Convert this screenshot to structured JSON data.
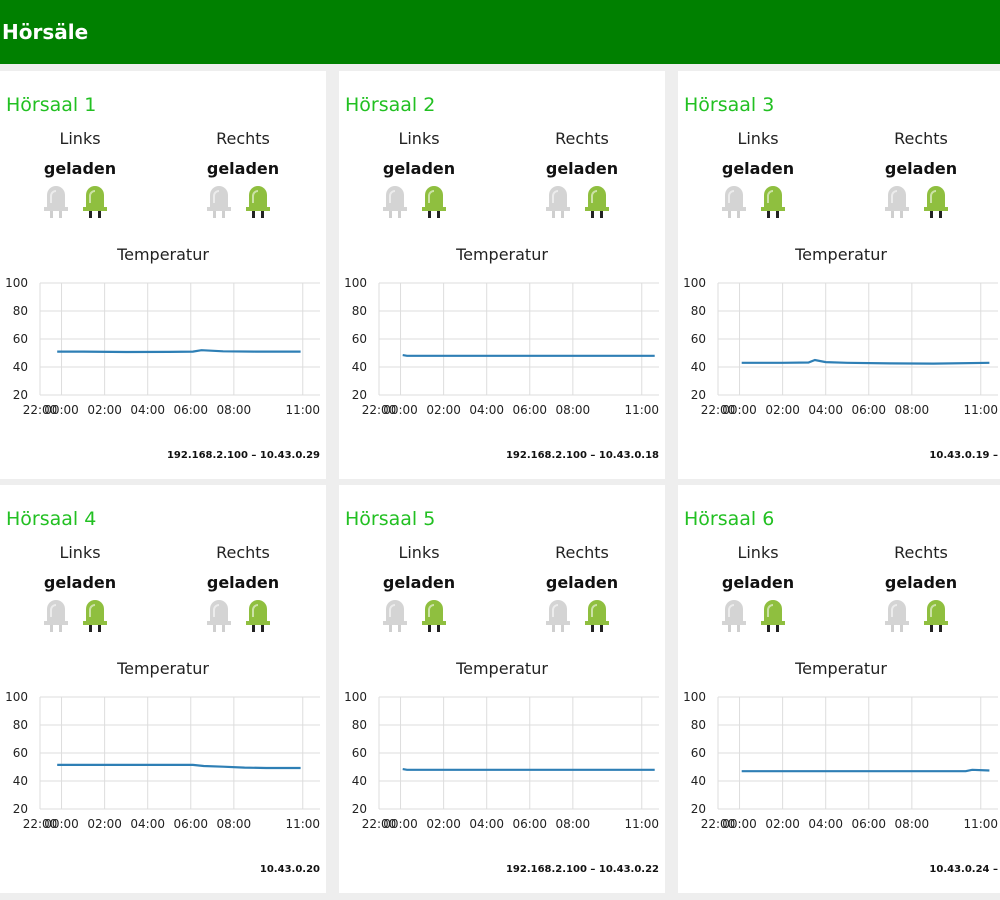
{
  "header": {
    "title": "Hörsäle",
    "background": "#008000"
  },
  "colors": {
    "title_green": "#22c022",
    "led_on": "#8fbf3f",
    "led_off": "#d4d4d4",
    "line": "#2e7fb5"
  },
  "cards": [
    {
      "title": "Hörsaal 1",
      "left": {
        "label": "Links",
        "status": "geladen",
        "led_states": [
          "off-icon",
          "on-icon"
        ]
      },
      "right": {
        "label": "Rechts",
        "status": "geladen",
        "led_states": [
          "off-icon",
          "on-icon"
        ]
      },
      "temperature_title": "Temperatur",
      "footer": "192.168.2.100 – 10.43.0.29",
      "chart_data": {
        "type": "line",
        "x_ticks": [
          "22:00",
          "00:00",
          "02:00",
          "04:00",
          "06:00",
          "08:00",
          "11:00"
        ],
        "y_ticks": [
          "100",
          "80",
          "60",
          "40",
          "20"
        ],
        "ylim": [
          20,
          100
        ],
        "xlim": [
          0,
          13
        ],
        "grid": true,
        "series": [
          {
            "x": [
              0.8,
              2,
              4,
              6,
              7.1,
              7.5,
              8.5,
              10,
              12.1
            ],
            "values": [
              51,
              51,
              50.7,
              50.8,
              51,
              52,
              51.2,
              51,
              51
            ]
          }
        ]
      }
    },
    {
      "title": "Hörsaal 2",
      "left": {
        "label": "Links",
        "status": "geladen",
        "led_states": [
          "off-icon",
          "on-icon"
        ]
      },
      "right": {
        "label": "Rechts",
        "status": "geladen",
        "led_states": [
          "off-icon",
          "on-icon"
        ]
      },
      "temperature_title": "Temperatur",
      "footer": "192.168.2.100 – 10.43.0.18",
      "chart_data": {
        "type": "line",
        "x_ticks": [
          "22:00",
          "00:00",
          "02:00",
          "04:00",
          "06:00",
          "08:00",
          "11:00"
        ],
        "y_ticks": [
          "100",
          "80",
          "60",
          "40",
          "20"
        ],
        "ylim": [
          20,
          100
        ],
        "xlim": [
          0,
          13
        ],
        "grid": true,
        "series": [
          {
            "x": [
              1.1,
              1.3,
              4,
              8,
              12.8
            ],
            "values": [
              48.5,
              48,
              48,
              48,
              48
            ]
          }
        ]
      }
    },
    {
      "title": "Hörsaal 3",
      "left": {
        "label": "Links",
        "status": "geladen",
        "led_states": [
          "off-icon",
          "on-icon"
        ]
      },
      "right": {
        "label": "Rechts",
        "status": "geladen",
        "led_states": [
          "off-icon",
          "on-icon"
        ]
      },
      "temperature_title": "Temperatur",
      "footer": "10.43.0.19 –",
      "chart_data": {
        "type": "line",
        "x_ticks": [
          "22:00",
          "00:00",
          "02:00",
          "04:00",
          "06:00",
          "08:00",
          "11:00"
        ],
        "y_ticks": [
          "100",
          "80",
          "60",
          "40",
          "20"
        ],
        "ylim": [
          20,
          100
        ],
        "xlim": [
          0,
          13
        ],
        "grid": true,
        "series": [
          {
            "x": [
              1.1,
              3,
              4.2,
              4.5,
              5,
              6,
              8,
              10,
              12.6
            ],
            "values": [
              43,
              43,
              43.2,
              45,
              43.5,
              43,
              42.6,
              42.4,
              43
            ]
          }
        ]
      }
    },
    {
      "title": "Hörsaal 4",
      "left": {
        "label": "Links",
        "status": "geladen",
        "led_states": [
          "off-icon",
          "on-icon"
        ]
      },
      "right": {
        "label": "Rechts",
        "status": "geladen",
        "led_states": [
          "off-icon",
          "on-icon"
        ]
      },
      "temperature_title": "Temperatur",
      "footer": "10.43.0.20",
      "chart_data": {
        "type": "line",
        "x_ticks": [
          "22:00",
          "00:00",
          "02:00",
          "04:00",
          "06:00",
          "08:00",
          "11:00"
        ],
        "y_ticks": [
          "100",
          "80",
          "60",
          "40",
          "20"
        ],
        "ylim": [
          20,
          100
        ],
        "xlim": [
          0,
          13
        ],
        "grid": true,
        "series": [
          {
            "x": [
              0.8,
              1.2,
              3,
              5,
              7.1,
              7.6,
              8.5,
              9.5,
              10.5,
              12.1
            ],
            "values": [
              51.5,
              51.5,
              51.5,
              51.5,
              51.5,
              50.7,
              50.2,
              49.6,
              49.3,
              49.3
            ]
          }
        ]
      }
    },
    {
      "title": "Hörsaal 5",
      "left": {
        "label": "Links",
        "status": "geladen",
        "led_states": [
          "off-icon",
          "on-icon"
        ]
      },
      "right": {
        "label": "Rechts",
        "status": "geladen",
        "led_states": [
          "off-icon",
          "on-icon"
        ]
      },
      "temperature_title": "Temperatur",
      "footer": "192.168.2.100 – 10.43.0.22",
      "chart_data": {
        "type": "line",
        "x_ticks": [
          "22:00",
          "00:00",
          "02:00",
          "04:00",
          "06:00",
          "08:00",
          "11:00"
        ],
        "y_ticks": [
          "100",
          "80",
          "60",
          "40",
          "20"
        ],
        "ylim": [
          20,
          100
        ],
        "xlim": [
          0,
          13
        ],
        "grid": true,
        "series": [
          {
            "x": [
              1.1,
              1.3,
              4,
              8,
              12.8
            ],
            "values": [
              48.5,
              48,
              48,
              48,
              48
            ]
          }
        ]
      }
    },
    {
      "title": "Hörsaal 6",
      "left": {
        "label": "Links",
        "status": "geladen",
        "led_states": [
          "off-icon",
          "on-icon"
        ]
      },
      "right": {
        "label": "Rechts",
        "status": "geladen",
        "led_states": [
          "off-icon",
          "on-icon"
        ]
      },
      "temperature_title": "Temperatur",
      "footer": "10.43.0.24 –",
      "chart_data": {
        "type": "line",
        "x_ticks": [
          "22:00",
          "00:00",
          "02:00",
          "04:00",
          "06:00",
          "08:00",
          "11:00"
        ],
        "y_ticks": [
          "100",
          "80",
          "60",
          "40",
          "20"
        ],
        "ylim": [
          20,
          100
        ],
        "xlim": [
          0,
          13
        ],
        "grid": true,
        "series": [
          {
            "x": [
              1.1,
              4,
              8,
              11.5,
              11.8,
              12.6
            ],
            "values": [
              47,
              47,
              47,
              47,
              48,
              47.5
            ]
          }
        ]
      }
    }
  ]
}
